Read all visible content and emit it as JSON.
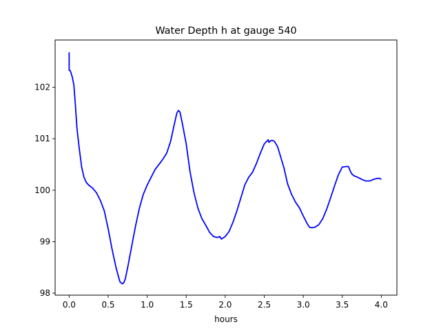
{
  "chart_data": {
    "type": "line",
    "title": "Water Depth h at gauge 540",
    "xlabel": "hours",
    "ylabel": "",
    "xlim": [
      -0.18,
      4.2
    ],
    "ylim": [
      97.96,
      102.92
    ],
    "xticks": [
      "0.0",
      "0.5",
      "1.0",
      "1.5",
      "2.0",
      "2.5",
      "3.0",
      "3.5",
      "4.0"
    ],
    "yticks": [
      "98",
      "99",
      "100",
      "101",
      "102"
    ],
    "grid": false,
    "series": [
      {
        "color": "#0000ff",
        "x": [
          0.0,
          0.0,
          0.01,
          0.02,
          0.04,
          0.06,
          0.08,
          0.1,
          0.13,
          0.16,
          0.19,
          0.22,
          0.25,
          0.3,
          0.35,
          0.4,
          0.45,
          0.5,
          0.55,
          0.6,
          0.65,
          0.68,
          0.7,
          0.72,
          0.75,
          0.8,
          0.85,
          0.9,
          0.95,
          1.0,
          1.05,
          1.1,
          1.15,
          1.2,
          1.25,
          1.3,
          1.35,
          1.38,
          1.4,
          1.42,
          1.45,
          1.5,
          1.55,
          1.6,
          1.65,
          1.7,
          1.75,
          1.8,
          1.85,
          1.9,
          1.93,
          1.95,
          2.0,
          2.05,
          2.1,
          2.15,
          2.2,
          2.25,
          2.3,
          2.35,
          2.4,
          2.45,
          2.5,
          2.55,
          2.56,
          2.58,
          2.6,
          2.63,
          2.67,
          2.7,
          2.75,
          2.8,
          2.85,
          2.9,
          2.95,
          3.0,
          3.05,
          3.08,
          3.1,
          3.15,
          3.2,
          3.25,
          3.3,
          3.35,
          3.4,
          3.45,
          3.5,
          3.55,
          3.58,
          3.6,
          3.62,
          3.65,
          3.7,
          3.75,
          3.8,
          3.85,
          3.9,
          3.95,
          3.98,
          4.0
        ],
        "y": [
          102.68,
          102.33,
          102.33,
          102.3,
          102.2,
          102.05,
          101.65,
          101.2,
          100.8,
          100.45,
          100.25,
          100.15,
          100.1,
          100.04,
          99.95,
          99.8,
          99.6,
          99.25,
          98.85,
          98.5,
          98.22,
          98.18,
          98.2,
          98.28,
          98.5,
          98.9,
          99.3,
          99.65,
          99.92,
          100.1,
          100.25,
          100.4,
          100.5,
          100.6,
          100.72,
          100.95,
          101.3,
          101.5,
          101.55,
          101.52,
          101.3,
          100.9,
          100.35,
          99.95,
          99.65,
          99.45,
          99.32,
          99.18,
          99.1,
          99.08,
          99.1,
          99.05,
          99.1,
          99.2,
          99.38,
          99.6,
          99.85,
          100.1,
          100.25,
          100.35,
          100.52,
          100.72,
          100.9,
          100.98,
          100.93,
          100.96,
          100.97,
          100.95,
          100.85,
          100.7,
          100.45,
          100.12,
          99.92,
          99.77,
          99.66,
          99.5,
          99.35,
          99.28,
          99.27,
          99.28,
          99.33,
          99.45,
          99.63,
          99.85,
          100.08,
          100.3,
          100.45,
          100.46,
          100.46,
          100.38,
          100.32,
          100.28,
          100.25,
          100.21,
          100.18,
          100.18,
          100.21,
          100.23,
          100.23,
          100.21
        ]
      }
    ]
  }
}
